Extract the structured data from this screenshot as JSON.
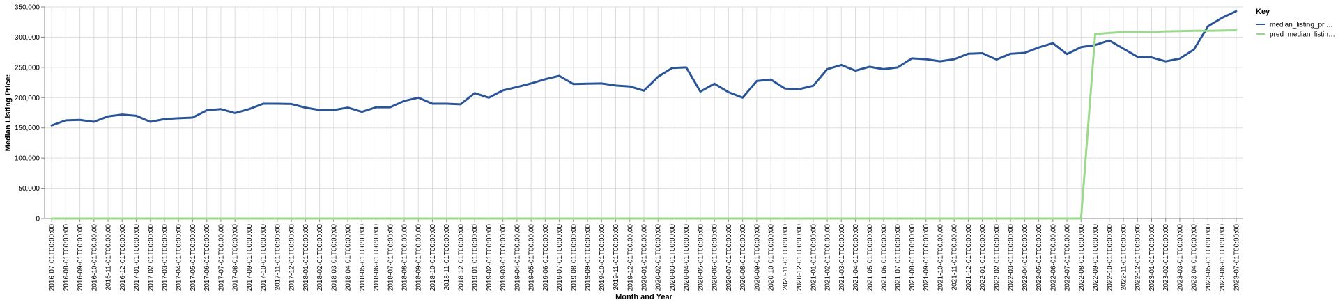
{
  "chart_data": {
    "type": "line",
    "title": "",
    "xlabel": "Month and Year",
    "ylabel": "Median Listing Price:",
    "ylim": [
      0,
      350000
    ],
    "yticks": [
      0,
      50000,
      100000,
      150000,
      200000,
      250000,
      300000,
      350000
    ],
    "ytick_labels": [
      "0",
      "50,000",
      "100,000",
      "150,000",
      "200,000",
      "250,000",
      "300,000",
      "350,000"
    ],
    "grid": true,
    "legend": {
      "title": "Key",
      "placement": "top-right",
      "entries": [
        {
          "label": "median_listing_pri…",
          "color": "#2a5599"
        },
        {
          "label": "pred_median_listin…",
          "color": "#9bd98e"
        }
      ]
    },
    "categories": [
      "2016-07-01T00:00:00",
      "2016-08-01T00:00:00",
      "2016-09-01T00:00:00",
      "2016-10-01T00:00:00",
      "2016-11-01T00:00:00",
      "2016-12-01T00:00:00",
      "2017-01-01T00:00:00",
      "2017-02-01T00:00:00",
      "2017-03-01T00:00:00",
      "2017-04-01T00:00:00",
      "2017-05-01T00:00:00",
      "2017-06-01T00:00:00",
      "2017-07-01T00:00:00",
      "2017-08-01T00:00:00",
      "2017-09-01T00:00:00",
      "2017-10-01T00:00:00",
      "2017-11-01T00:00:00",
      "2017-12-01T00:00:00",
      "2018-01-01T00:00:00",
      "2018-02-01T00:00:00",
      "2018-03-01T00:00:00",
      "2018-04-01T00:00:00",
      "2018-05-01T00:00:00",
      "2018-06-01T00:00:00",
      "2018-07-01T00:00:00",
      "2018-08-01T00:00:00",
      "2018-09-01T00:00:00",
      "2018-10-01T00:00:00",
      "2018-11-01T00:00:00",
      "2018-12-01T00:00:00",
      "2019-01-01T00:00:00",
      "2019-02-01T00:00:00",
      "2019-03-01T00:00:00",
      "2019-04-01T00:00:00",
      "2019-05-01T00:00:00",
      "2019-06-01T00:00:00",
      "2019-07-01T00:00:00",
      "2019-08-01T00:00:00",
      "2019-09-01T00:00:00",
      "2019-10-01T00:00:00",
      "2019-11-01T00:00:00",
      "2019-12-01T00:00:00",
      "2020-01-01T00:00:00",
      "2020-02-01T00:00:00",
      "2020-03-01T00:00:00",
      "2020-04-01T00:00:00",
      "2020-05-01T00:00:00",
      "2020-06-01T00:00:00",
      "2020-07-01T00:00:00",
      "2020-08-01T00:00:00",
      "2020-09-01T00:00:00",
      "2020-10-01T00:00:00",
      "2020-11-01T00:00:00",
      "2020-12-01T00:00:00",
      "2021-01-01T00:00:00",
      "2021-02-01T00:00:00",
      "2021-03-01T00:00:00",
      "2021-04-01T00:00:00",
      "2021-05-01T00:00:00",
      "2021-06-01T00:00:00",
      "2021-07-01T00:00:00",
      "2021-08-01T00:00:00",
      "2021-09-01T00:00:00",
      "2021-10-01T00:00:00",
      "2021-11-01T00:00:00",
      "2021-12-01T00:00:00",
      "2022-01-01T00:00:00",
      "2022-02-01T00:00:00",
      "2022-03-01T00:00:00",
      "2022-04-01T00:00:00",
      "2022-05-01T00:00:00",
      "2022-06-01T00:00:00",
      "2022-07-01T00:00:00",
      "2022-08-01T00:00:00",
      "2022-09-01T00:00:00",
      "2022-10-01T00:00:00",
      "2022-11-01T00:00:00",
      "2022-12-01T00:00:00",
      "2023-01-01T00:00:00",
      "2023-02-01T00:00:00",
      "2023-03-01T00:00:00",
      "2023-04-01T00:00:00",
      "2023-05-01T00:00:00",
      "2023-06-01T00:00:00",
      "2023-07-01T00:00:00"
    ],
    "series": [
      {
        "name": "median_listing_pri…",
        "color": "#2a5599",
        "values": [
          154000,
          162500,
          163200,
          160000,
          169000,
          172000,
          170000,
          160000,
          164500,
          166000,
          167000,
          179000,
          181000,
          174500,
          181000,
          190000,
          190000,
          189500,
          183500,
          179500,
          179500,
          183500,
          176500,
          184000,
          184000,
          194500,
          200000,
          190000,
          190000,
          189000,
          207500,
          200000,
          212000,
          217500,
          223500,
          230500,
          236000,
          222500,
          223000,
          223500,
          220000,
          218500,
          211500,
          234500,
          249000,
          250000,
          210000,
          223000,
          209000,
          200000,
          227500,
          230000,
          215000,
          214000,
          219500,
          247000,
          254000,
          244500,
          251000,
          247000,
          250000,
          265000,
          263500,
          260000,
          263500,
          272500,
          273500,
          263000,
          272500,
          274000,
          283000,
          290000,
          272000,
          283500,
          287000,
          294500,
          281000,
          267500,
          266500,
          260000,
          264500,
          279500,
          318000,
          332000,
          343000
        ]
      },
      {
        "name": "pred_median_listin…",
        "color": "#9bd98e",
        "values": [
          0,
          0,
          0,
          0,
          0,
          0,
          0,
          0,
          0,
          0,
          0,
          0,
          0,
          0,
          0,
          0,
          0,
          0,
          0,
          0,
          0,
          0,
          0,
          0,
          0,
          0,
          0,
          0,
          0,
          0,
          0,
          0,
          0,
          0,
          0,
          0,
          0,
          0,
          0,
          0,
          0,
          0,
          0,
          0,
          0,
          0,
          0,
          0,
          0,
          0,
          0,
          0,
          0,
          0,
          0,
          0,
          0,
          0,
          0,
          0,
          0,
          0,
          0,
          0,
          0,
          0,
          0,
          0,
          0,
          0,
          0,
          0,
          0,
          0,
          305000,
          307000,
          308500,
          309000,
          308500,
          309500,
          310000,
          310500,
          310500,
          311000,
          311500
        ]
      }
    ]
  }
}
